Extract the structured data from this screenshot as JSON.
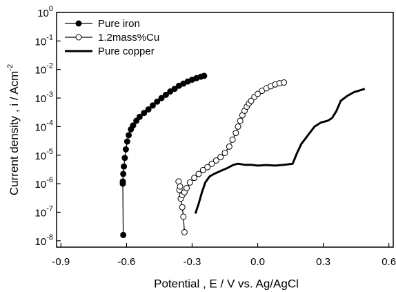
{
  "chart_data": {
    "type": "line",
    "x_label": "Potential ,  E / V vs. Ag/AgCl",
    "y_label": "Current density ,  i / Acm^-2",
    "y_scale": "log",
    "xlim": [
      -0.92,
      0.62
    ],
    "xticks": [
      -0.9,
      -0.6,
      -0.3,
      {
        "value": 0.0,
        "label": "0.0"
      },
      0.3,
      0.6
    ],
    "ylim": [
      6e-09,
      1
    ],
    "yticks": [
      {
        "value": 1,
        "label": "10^0"
      },
      {
        "value": 0.1,
        "label": "10^-1"
      },
      {
        "value": 0.01,
        "label": "10^-2"
      },
      {
        "value": 0.001,
        "label": "10^-3"
      },
      {
        "value": 0.0001,
        "label": "10^-4"
      },
      {
        "value": 1e-05,
        "label": "10^-5"
      },
      {
        "value": 1e-06,
        "label": "10^-6"
      },
      {
        "value": 1e-07,
        "label": "10^-7"
      },
      {
        "value": 1e-08,
        "label": "10^-8"
      }
    ],
    "legend": "upper left",
    "series": [
      {
        "name": "Pure iron",
        "color": "#000000",
        "marker": "filled",
        "x": [
          -0.615,
          -0.617,
          -0.617,
          -0.615,
          -0.612,
          -0.608,
          -0.603,
          -0.597,
          -0.59,
          -0.58,
          -0.57,
          -0.555,
          -0.54,
          -0.52,
          -0.5,
          -0.48,
          -0.46,
          -0.44,
          -0.42,
          -0.4,
          -0.38,
          -0.36,
          -0.34,
          -0.32,
          -0.3,
          -0.28,
          -0.26,
          -0.245
        ],
        "values": [
          1.6e-08,
          1e-06,
          1.2e-06,
          2.2e-06,
          4e-06,
          8e-06,
          1.6e-05,
          3e-05,
          5e-05,
          8e-05,
          0.00011,
          0.00016,
          0.00022,
          0.0003,
          0.0004,
          0.00055,
          0.00075,
          0.001,
          0.0013,
          0.0017,
          0.0021,
          0.0027,
          0.0032,
          0.0038,
          0.0044,
          0.005,
          0.0056,
          0.006
        ]
      },
      {
        "name": "1.2mass%Cu",
        "color": "#000000",
        "marker": "open",
        "x": [
          -0.335,
          -0.34,
          -0.345,
          -0.352,
          -0.358,
          -0.362,
          -0.355,
          -0.345,
          -0.335,
          -0.325,
          -0.31,
          -0.29,
          -0.27,
          -0.25,
          -0.23,
          -0.21,
          -0.19,
          -0.17,
          -0.15,
          -0.13,
          -0.115,
          -0.1,
          -0.09,
          -0.08,
          -0.07,
          -0.06,
          -0.05,
          -0.04,
          -0.03,
          -0.015,
          0.0,
          0.02,
          0.04,
          0.06,
          0.08,
          0.1,
          0.12
        ],
        "values": [
          2e-08,
          7e-08,
          1.5e-07,
          3e-07,
          6e-07,
          1.2e-06,
          8e-07,
          4e-07,
          5e-07,
          7e-07,
          1.1e-06,
          1.6e-06,
          2.2e-06,
          3e-06,
          3.8e-06,
          5e-06,
          6.5e-06,
          8.5e-06,
          1.2e-05,
          2e-05,
          3.5e-05,
          6e-05,
          0.0001,
          0.00016,
          0.00025,
          0.00036,
          0.0005,
          0.00065,
          0.0008,
          0.0011,
          0.0014,
          0.0018,
          0.0022,
          0.0026,
          0.003,
          0.0033,
          0.0035
        ]
      },
      {
        "name": "Pure copper",
        "color": "#000000",
        "marker": "none",
        "x": [
          -0.285,
          -0.27,
          -0.255,
          -0.24,
          -0.22,
          -0.2,
          -0.17,
          -0.14,
          -0.11,
          -0.09,
          -0.06,
          -0.03,
          0.0,
          0.04,
          0.08,
          0.12,
          0.16,
          0.18,
          0.2,
          0.23,
          0.26,
          0.29,
          0.32,
          0.34,
          0.36,
          0.38,
          0.41,
          0.44,
          0.49
        ],
        "values": [
          9e-08,
          2e-07,
          5e-07,
          1.1e-06,
          1.8e-06,
          2.2e-06,
          2.8e-06,
          3.5e-06,
          4.6e-06,
          5e-06,
          4.6e-06,
          4.6e-06,
          4.3e-06,
          4.5e-06,
          4.3e-06,
          4.6e-06,
          5e-06,
          1.2e-05,
          2.5e-05,
          5e-05,
          0.0001,
          0.00014,
          0.00016,
          0.0002,
          0.00035,
          0.0008,
          0.0012,
          0.0016,
          0.0021
        ]
      }
    ]
  }
}
